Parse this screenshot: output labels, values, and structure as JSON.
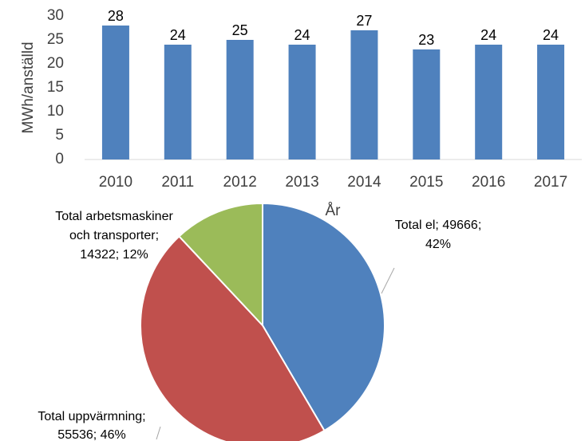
{
  "chart_data": [
    {
      "type": "bar",
      "categories": [
        "2010",
        "2011",
        "2012",
        "2013",
        "2014",
        "2015",
        "2016",
        "2017"
      ],
      "values": [
        28,
        24,
        25,
        24,
        27,
        23,
        24,
        24
      ],
      "color": "#4f81bd",
      "ylim": [
        0,
        30
      ],
      "yticks": [
        0,
        5,
        10,
        15,
        20,
        25,
        30
      ],
      "ylabel": "MWh/anställd",
      "xlabel": "År"
    },
    {
      "type": "pie",
      "categories": [
        "Total el",
        "Total uppvärmning",
        "Total arbetsmaskiner och transporter"
      ],
      "values": [
        49666,
        55536,
        14322
      ],
      "colors": [
        "#4f81bd",
        "#c0504d",
        "#9bbb59"
      ],
      "value_labels": [
        [
          "Total el; 49666;",
          "42%"
        ],
        [
          "Total uppvärmning;",
          "55536; 46%"
        ],
        [
          "Total arbetsmaskiner",
          "och transporter;",
          "14322; 12%"
        ]
      ]
    }
  ]
}
